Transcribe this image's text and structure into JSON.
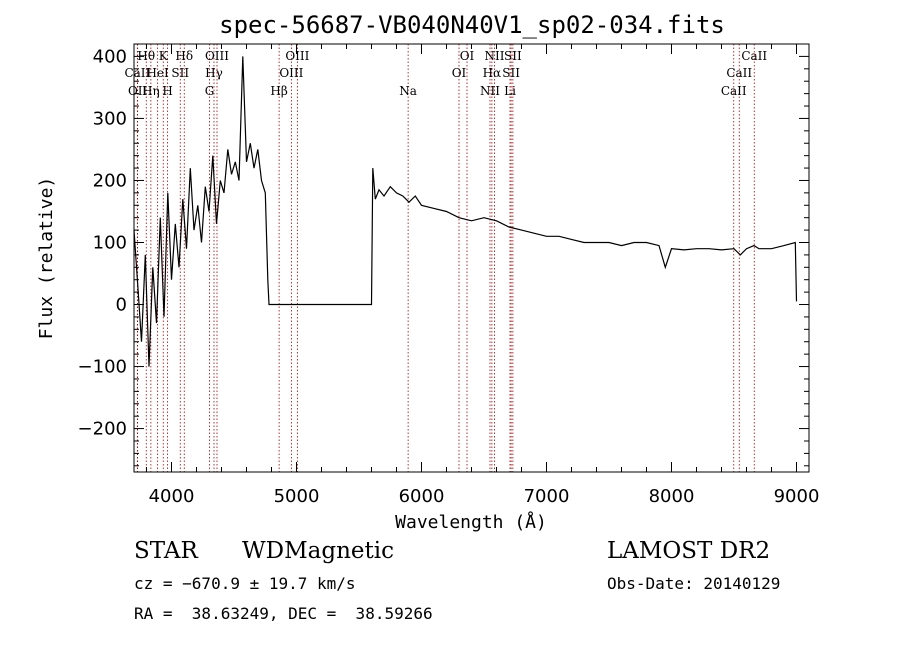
{
  "chart_data": {
    "type": "line",
    "title": "spec-56687-VB040N40V1_sp02-034.fits",
    "xlabel": "Wavelength (Å)",
    "ylabel": "Flux (relative)",
    "xlim": [
      3700,
      9100
    ],
    "ylim": [
      -270,
      420
    ],
    "xticks": [
      4000,
      5000,
      6000,
      7000,
      8000,
      9000
    ],
    "yticks": [
      -200,
      -100,
      0,
      100,
      200,
      300,
      400
    ],
    "ytick_labels": [
      "−200",
      "−100",
      "0",
      "100",
      "200",
      "300",
      "400"
    ],
    "grid": false,
    "line_color": "#000000",
    "marker_color": "#aa0000",
    "series": [
      {
        "wavelength": [
          3700,
          3730,
          3760,
          3790,
          3820,
          3850,
          3880,
          3910,
          3940,
          3970,
          4000,
          4030,
          4060,
          4090,
          4120,
          4150,
          4180,
          4210,
          4240,
          4270,
          4300,
          4330,
          4360,
          4390,
          4420,
          4450,
          4480,
          4510,
          4540,
          4570,
          4600,
          4630,
          4660,
          4690,
          4720,
          4750,
          4770,
          4780,
          5600,
          5610,
          5630,
          5660,
          5700,
          5750,
          5800,
          5850,
          5900,
          5950,
          6000,
          6100,
          6200,
          6300,
          6400,
          6500,
          6600,
          6700,
          6800,
          6900,
          7000,
          7100,
          7200,
          7300,
          7400,
          7500,
          7600,
          7700,
          7800,
          7900,
          7950,
          8000,
          8100,
          8200,
          8300,
          8400,
          8500,
          8550,
          8600,
          8660,
          8700,
          8800,
          8900,
          8990,
          9000
        ],
        "flux": [
          120,
          30,
          -60,
          80,
          -100,
          60,
          -30,
          140,
          -20,
          180,
          40,
          130,
          60,
          170,
          90,
          220,
          120,
          160,
          100,
          190,
          150,
          240,
          130,
          200,
          180,
          250,
          210,
          230,
          200,
          400,
          230,
          260,
          220,
          250,
          200,
          180,
          40,
          0,
          0,
          220,
          170,
          185,
          175,
          190,
          180,
          175,
          165,
          175,
          160,
          155,
          150,
          140,
          135,
          140,
          135,
          125,
          120,
          115,
          110,
          110,
          105,
          100,
          100,
          100,
          95,
          100,
          100,
          95,
          60,
          90,
          88,
          90,
          90,
          88,
          90,
          80,
          90,
          95,
          90,
          90,
          95,
          100,
          5
        ]
      }
    ],
    "lines": [
      {
        "label": "Hθ",
        "x": 3798,
        "row": 0
      },
      {
        "label": "K",
        "x": 3934,
        "row": 0
      },
      {
        "label": "Hδ",
        "x": 4102,
        "row": 0
      },
      {
        "label": "OIII",
        "x": 4364,
        "row": 0
      },
      {
        "label": "OIII",
        "x": 5007,
        "row": 0
      },
      {
        "label": "OI",
        "x": 6364,
        "row": 0
      },
      {
        "label": "NII",
        "x": 6584,
        "row": 0
      },
      {
        "label": "SII",
        "x": 6731,
        "row": 0
      },
      {
        "label": "CaII",
        "x": 8662,
        "row": 0
      },
      {
        "label": "CaII",
        "x": 3727,
        "row": 1
      },
      {
        "label": "HeI",
        "x": 3889,
        "row": 1
      },
      {
        "label": "SII",
        "x": 4070,
        "row": 1
      },
      {
        "label": "Hγ",
        "x": 4340,
        "row": 1
      },
      {
        "label": "OIII",
        "x": 4959,
        "row": 1
      },
      {
        "label": "OI",
        "x": 6300,
        "row": 1
      },
      {
        "label": "Hα",
        "x": 6563,
        "row": 1
      },
      {
        "label": "SII",
        "x": 6717,
        "row": 1
      },
      {
        "label": "CaII",
        "x": 8542,
        "row": 1
      },
      {
        "label": "OII",
        "x": 3729,
        "row": 2
      },
      {
        "label": "Hη",
        "x": 3835,
        "row": 2
      },
      {
        "label": "H",
        "x": 3969,
        "row": 2
      },
      {
        "label": "G",
        "x": 4304,
        "row": 2
      },
      {
        "label": "Hβ",
        "x": 4861,
        "row": 2
      },
      {
        "label": "Na",
        "x": 5893,
        "row": 2
      },
      {
        "label": "NII",
        "x": 6548,
        "row": 2
      },
      {
        "label": "Li",
        "x": 6708,
        "row": 2
      },
      {
        "label": "CaII",
        "x": 8498,
        "row": 2
      }
    ]
  },
  "info": {
    "class": "STAR",
    "subclass": "WDMagnetic",
    "survey": "LAMOST DR2",
    "cz": "cz = −670.9 ± 19.7 km/s",
    "obs_date": "Obs-Date: 20140129",
    "radec": "RA =  38.63249, DEC =  38.59266"
  }
}
